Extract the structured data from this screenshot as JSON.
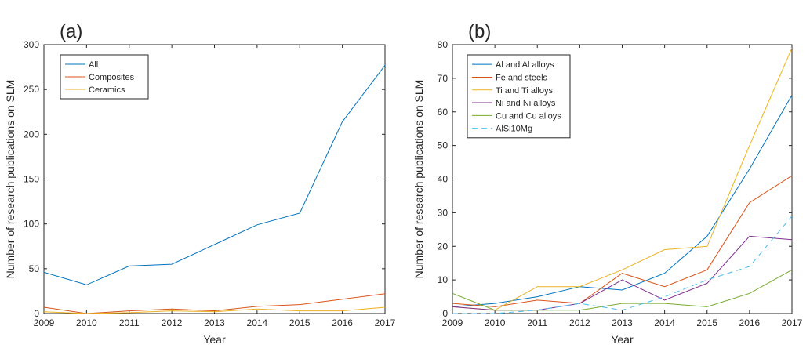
{
  "chart_data": [
    {
      "type": "line",
      "panel_label": "(a)",
      "xlabel": "Year",
      "ylabel": "Number of research publications on SLM",
      "x": [
        2009,
        2010,
        2011,
        2012,
        2013,
        2014,
        2015,
        2016,
        2017
      ],
      "xlim": [
        2009,
        2017
      ],
      "ylim": [
        0,
        300
      ],
      "yticks": [
        0,
        50,
        100,
        150,
        200,
        250,
        300
      ],
      "grid": false,
      "legend_position": "top-left",
      "series": [
        {
          "name": "All",
          "color": "#0072BD",
          "dash": "solid",
          "values": [
            46,
            32,
            53,
            55,
            77,
            99,
            112,
            214,
            277
          ]
        },
        {
          "name": "Composites",
          "color": "#D95319",
          "dash": "solid",
          "values": [
            7,
            0,
            3,
            5,
            3,
            8,
            10,
            16,
            22
          ]
        },
        {
          "name": "Ceramics",
          "color": "#EDB120",
          "dash": "solid",
          "values": [
            2,
            0,
            1,
            3,
            2,
            5,
            3,
            3,
            7
          ]
        }
      ]
    },
    {
      "type": "line",
      "panel_label": "(b)",
      "xlabel": "Year",
      "ylabel": "Number of research publications on SLM",
      "x": [
        2009,
        2010,
        2011,
        2012,
        2013,
        2014,
        2015,
        2016,
        2017
      ],
      "xlim": [
        2009,
        2017
      ],
      "ylim": [
        0,
        80
      ],
      "yticks": [
        0,
        10,
        20,
        30,
        40,
        50,
        60,
        70,
        80
      ],
      "grid": false,
      "legend_position": "top-left",
      "series": [
        {
          "name": "Al and Al alloys",
          "color": "#0072BD",
          "dash": "solid",
          "values": [
            2,
            3,
            5,
            8,
            7,
            12,
            23,
            43,
            65
          ]
        },
        {
          "name": "Fe and steels",
          "color": "#D95319",
          "dash": "solid",
          "values": [
            3,
            2,
            4,
            3,
            12,
            8,
            13,
            33,
            41
          ]
        },
        {
          "name": "Ti and Ti alloys",
          "color": "#EDB120",
          "dash": "solid",
          "values": [
            2,
            1,
            8,
            8,
            13,
            19,
            20,
            50,
            79
          ]
        },
        {
          "name": "Ni and Ni alloys",
          "color": "#7E2F8E",
          "dash": "solid",
          "values": [
            2,
            1,
            1,
            3,
            10,
            4,
            9,
            23,
            22
          ]
        },
        {
          "name": "Cu and Cu alloys",
          "color": "#77AC30",
          "dash": "solid",
          "values": [
            6,
            1,
            1,
            1,
            3,
            3,
            2,
            6,
            13
          ]
        },
        {
          "name": "AlSi10Mg",
          "color": "#4DBEEE",
          "dash": "dashed",
          "values": [
            0,
            0,
            1,
            3,
            1,
            5,
            10,
            14,
            29
          ]
        }
      ]
    }
  ]
}
